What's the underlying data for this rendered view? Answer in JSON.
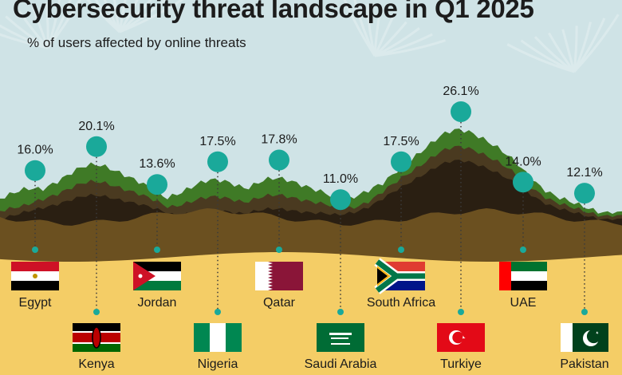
{
  "title": "Cybersecurity threat landscape in Q1 2025",
  "subtitle": "% of users affected by online threats",
  "colors": {
    "background": "#cfe3e6",
    "marker": "#1aa99a",
    "sand": "#f4cd66",
    "hill_light": "#3f7a26",
    "hill_mid": "#4a3a20",
    "hill_dark": "#2a1f12",
    "ground": "#6b5020"
  },
  "chart_data": {
    "type": "bar",
    "title": "Cybersecurity threat landscape in Q1 2025",
    "subtitle": "% of users affected by online threats",
    "unit": "%",
    "categories": [
      "Egypt",
      "Kenya",
      "Jordan",
      "Nigeria",
      "Qatar",
      "Saudi Arabia",
      "South Africa",
      "Turkiye",
      "UAE",
      "Pakistan"
    ],
    "series": [
      {
        "values": [
          16.0,
          20.1,
          13.6,
          17.5,
          17.8,
          11.0,
          17.5,
          26.1,
          14.0,
          12.1
        ]
      }
    ],
    "value_labels": [
      "16.0%",
      "20.1%",
      "13.6%",
      "17.5%",
      "17.8%",
      "11.0%",
      "17.5%",
      "26.1%",
      "14.0%",
      "12.1%"
    ],
    "label_rows": [
      "top",
      "bottom",
      "top",
      "bottom",
      "top",
      "bottom",
      "top",
      "bottom",
      "top",
      "bottom"
    ],
    "flag_icons": [
      "egypt-flag",
      "kenya-flag",
      "jordan-flag",
      "nigeria-flag",
      "qatar-flag",
      "saudi-arabia-flag",
      "south-africa-flag",
      "turkiye-flag",
      "uae-flag",
      "pakistan-flag"
    ]
  }
}
